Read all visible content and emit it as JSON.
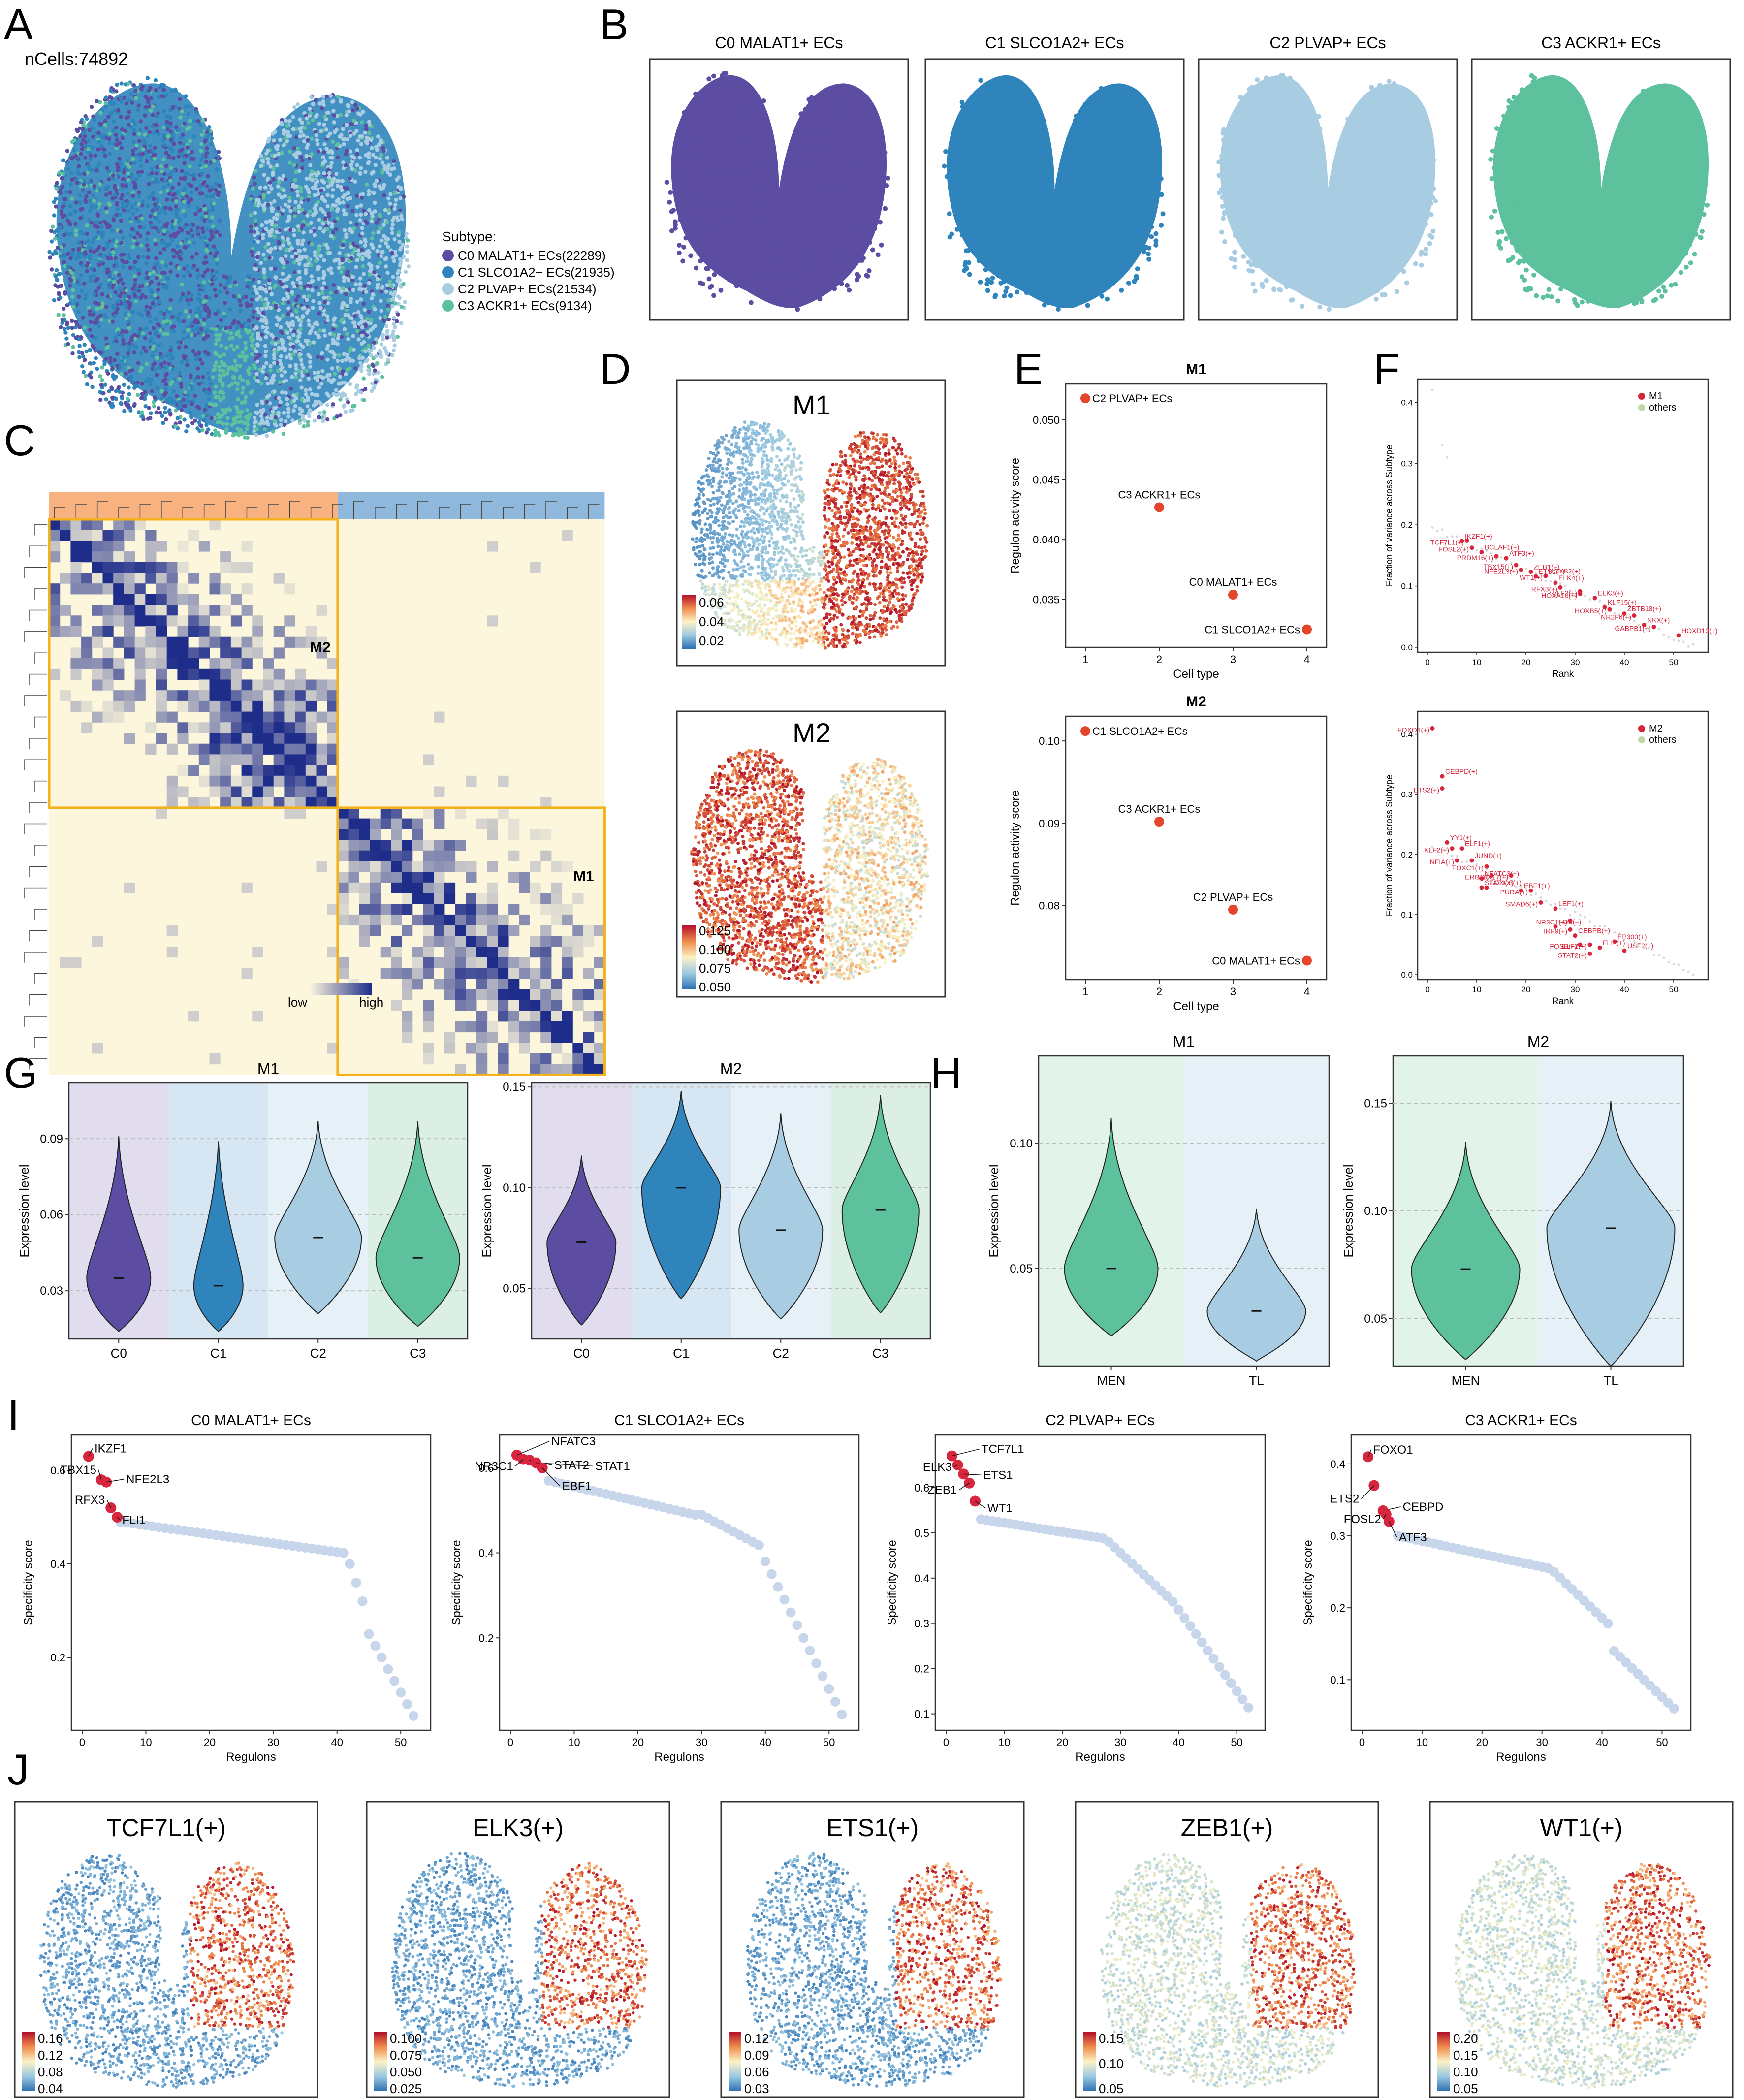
{
  "colors": {
    "c0": "#5c4da3",
    "c1": "#2f84bc",
    "c2": "#a8cde3",
    "c3": "#5cc19c",
    "heat_low": "#fbf6dc",
    "heat_high": "#1f2d8a",
    "heat_orange": "#f7b27f",
    "heat_blue": "#8fb8dc",
    "module_box": "#f3b21b",
    "red": "#d7263d",
    "grey": "#c7d6ea"
  },
  "panel_letters": [
    "A",
    "B",
    "C",
    "D",
    "E",
    "F",
    "G",
    "H",
    "I",
    "J"
  ],
  "panelA": {
    "ncells": "nCells:74892",
    "legend_title": "Subtype:",
    "legend": [
      "C0 MALAT1+ ECs(22289)",
      "C1 SLCO1A2+ ECs(21935)",
      "C2 PLVAP+ ECs(21534)",
      "C3 ACKR1+ ECs(9134)"
    ]
  },
  "panelB": {
    "titles": [
      "C0 MALAT1+ ECs",
      "C1 SLCO1A2+ ECs",
      "C2 PLVAP+ ECs",
      "C3 ACKR1+ ECs"
    ]
  },
  "panelC": {
    "label_m2": "M2",
    "label_m1": "M1",
    "low": "low",
    "high": "high"
  },
  "panelD": {
    "m1_title": "M1",
    "m1_ticks": [
      "0.06",
      "0.04",
      "0.02"
    ],
    "m2_title": "M2",
    "m2_ticks": [
      "0.125",
      "0.100",
      "0.075",
      "0.050"
    ]
  },
  "chart_data": [
    {
      "id": "E-M1",
      "type": "scatter",
      "title": "M1",
      "xlabel": "Cell type",
      "ylabel": "Regulon activity score",
      "x": [
        1,
        2,
        3,
        4
      ],
      "y": [
        0.0518,
        0.0427,
        0.0354,
        0.0325
      ],
      "labels": [
        "C2 PLVAP+ ECs",
        "C3 ACKR1+ ECs",
        "C0 MALAT1+ ECs",
        "C1 SLCO1A2+ ECs"
      ],
      "yticks": [
        "0.050",
        "0.045",
        "0.040",
        "0.035"
      ],
      "ylim": [
        0.031,
        0.053
      ],
      "xticks": [
        "1",
        "2",
        "3",
        "4"
      ]
    },
    {
      "id": "E-M2",
      "type": "scatter",
      "title": "M2",
      "xlabel": "Cell type",
      "ylabel": "Regulon activity score",
      "x": [
        1,
        2,
        3,
        4
      ],
      "y": [
        0.1012,
        0.0902,
        0.0795,
        0.0733
      ],
      "labels": [
        "C1 SLCO1A2+ ECs",
        "C3 ACKR1+ ECs",
        "C2 PLVAP+ ECs",
        "C0 MALAT1+ ECs"
      ],
      "yticks": [
        "0.10",
        "0.09",
        "0.08"
      ],
      "ylim": [
        0.071,
        0.103
      ],
      "xticks": [
        "1",
        "2",
        "3",
        "4"
      ]
    },
    {
      "id": "F-M1",
      "type": "scatter",
      "xlabel": "Rank",
      "ylabel": "Fraction of variance across Subtype",
      "legend": [
        "M1",
        "others"
      ],
      "yticks": [
        "0.4",
        "0.3",
        "0.2",
        "0.1",
        "0.0"
      ],
      "xticks": [
        "0",
        "10",
        "20",
        "30",
        "40",
        "50"
      ],
      "labels": [
        "FOSL2(+)",
        "IKZF1(+)",
        "TCF7L1(+)",
        "BCLAF1(+)",
        "PRDM16(+)",
        "ATF3(+)",
        "NFE2L3(+)",
        "ZEB1(+)",
        "WT1(+)",
        "ETS1(+)",
        "TBX15(+)",
        "HOXB2(+)",
        "RFX3(+)",
        "ELK4(+)",
        "ELF2(+)",
        "KLF15(+)",
        "HOXA10(+)",
        "ELK3(+)",
        "HOXB5(+)",
        "ZBTB18(+)",
        "NR2F6(+)",
        "NKX(+)",
        "GABPB1(+)",
        "HOXD10(+)"
      ]
    },
    {
      "id": "F-M2",
      "type": "scatter",
      "xlabel": "Rank",
      "ylabel": "Fraction of variance across Subtype",
      "legend": [
        "M2",
        "others"
      ],
      "yticks": [
        "0.4",
        "0.3",
        "0.2",
        "0.1",
        "0.0"
      ],
      "xticks": [
        "0",
        "10",
        "20",
        "30",
        "40",
        "50"
      ],
      "labels": [
        "FOXO1(+)",
        "CEBPD(+)",
        "ETS2(+)",
        "YY1(+)",
        "KLF2(+)",
        "ELF1(+)",
        "NFIA(+)",
        "JUND(+)",
        "FOXC1(+)",
        "NFATC3(+)",
        "ERG(+)",
        "FOXO3(+)",
        "SOX17(+)",
        "STAT1(+)",
        "PURA(+)",
        "EBF1(+)",
        "SMAD6(+)",
        "LEF1(+)",
        "NR3C1(+)",
        "FOS(+)",
        "IRF9(+)",
        "CEBPB(+)",
        "ELF2(+)",
        "EP300(+)",
        "FOSB(+)",
        "FLI1(+)",
        "STAT2(+)",
        "USF2(+)"
      ]
    },
    {
      "id": "G-M1",
      "type": "violin",
      "title": "M1",
      "ylabel": "Expression level",
      "categories": [
        "C0",
        "C1",
        "C2",
        "C3"
      ],
      "medians": [
        0.035,
        0.032,
        0.051,
        0.043
      ],
      "yticks": [
        "0.09",
        "0.06",
        "0.03"
      ],
      "ylim": [
        0.011,
        0.112
      ]
    },
    {
      "id": "G-M2",
      "type": "violin",
      "title": "M2",
      "ylabel": "Expression level",
      "categories": [
        "C0",
        "C1",
        "C2",
        "C3"
      ],
      "medians": [
        0.073,
        0.1,
        0.079,
        0.089
      ],
      "yticks": [
        "0.15",
        "0.10",
        "0.05"
      ],
      "ylim": [
        0.025,
        0.152
      ]
    },
    {
      "id": "H-M1",
      "type": "violin",
      "title": "M1",
      "ylabel": "Expression level",
      "categories": [
        "MEN",
        "TL"
      ],
      "medians": [
        0.05,
        0.033
      ],
      "yticks": [
        "0.10",
        "0.05"
      ],
      "ylim": [
        0.011,
        0.135
      ]
    },
    {
      "id": "H-M2",
      "type": "violin",
      "title": "M2",
      "ylabel": "Expression level",
      "categories": [
        "MEN",
        "TL"
      ],
      "medians": [
        0.073,
        0.092
      ],
      "yticks": [
        "0.15",
        "0.10",
        "0.05"
      ],
      "ylim": [
        0.028,
        0.172
      ]
    },
    {
      "id": "I-C0",
      "type": "scatter",
      "title": "C0 MALAT1+ ECs",
      "xlabel": "Regulons",
      "ylabel": "Specificity score",
      "highlight": [
        "IKZF1",
        "TBX15",
        "NFE2L3",
        "RFX3",
        "FLI1"
      ],
      "yticks": [
        "0.6",
        "0.4",
        "0.2"
      ],
      "xticks": [
        "0",
        "10",
        "20",
        "30",
        "40",
        "50"
      ]
    },
    {
      "id": "I-C1",
      "type": "scatter",
      "title": "C1 SLCO1A2+ ECs",
      "xlabel": "Regulons",
      "ylabel": "Specificity score",
      "highlight": [
        "NFATC3",
        "NR3C1",
        "STAT2",
        "STAT1",
        "EBF1"
      ],
      "yticks": [
        "0.6",
        "0.4",
        "0.2"
      ],
      "xticks": [
        "0",
        "10",
        "20",
        "30",
        "40",
        "50"
      ]
    },
    {
      "id": "I-C2",
      "type": "scatter",
      "title": "C2 PLVAP+ ECs",
      "xlabel": "Regulons",
      "ylabel": "Specificity score",
      "highlight": [
        "TCF7L1",
        "ELK3",
        "ETS1",
        "ZEB1",
        "WT1"
      ],
      "yticks": [
        "0.6",
        "0.5",
        "0.4",
        "0.3",
        "0.2",
        "0.1"
      ],
      "xticks": [
        "0",
        "10",
        "20",
        "30",
        "40",
        "50"
      ]
    },
    {
      "id": "I-C3",
      "type": "scatter",
      "title": "C3 ACKR1+ ECs",
      "xlabel": "Regulons",
      "ylabel": "Specificity score",
      "highlight": [
        "FOXO1",
        "ETS2",
        "CEBPD",
        "FOSL2",
        "ATF3"
      ],
      "yticks": [
        "0.4",
        "0.3",
        "0.2",
        "0.1"
      ],
      "xticks": [
        "0",
        "10",
        "20",
        "30",
        "40",
        "50"
      ]
    }
  ],
  "panelJ": {
    "titles": [
      "TCF7L1(+)",
      "ELK3(+)",
      "ETS1(+)",
      "ZEB1(+)",
      "WT1(+)"
    ],
    "ticks": [
      [
        "0.16",
        "0.12",
        "0.08",
        "0.04"
      ],
      [
        "0.100",
        "0.075",
        "0.050",
        "0.025"
      ],
      [
        "0.12",
        "0.09",
        "0.06",
        "0.03"
      ],
      [
        "0.15",
        "0.10",
        "0.05"
      ],
      [
        "0.20",
        "0.15",
        "0.10",
        "0.05"
      ]
    ]
  }
}
